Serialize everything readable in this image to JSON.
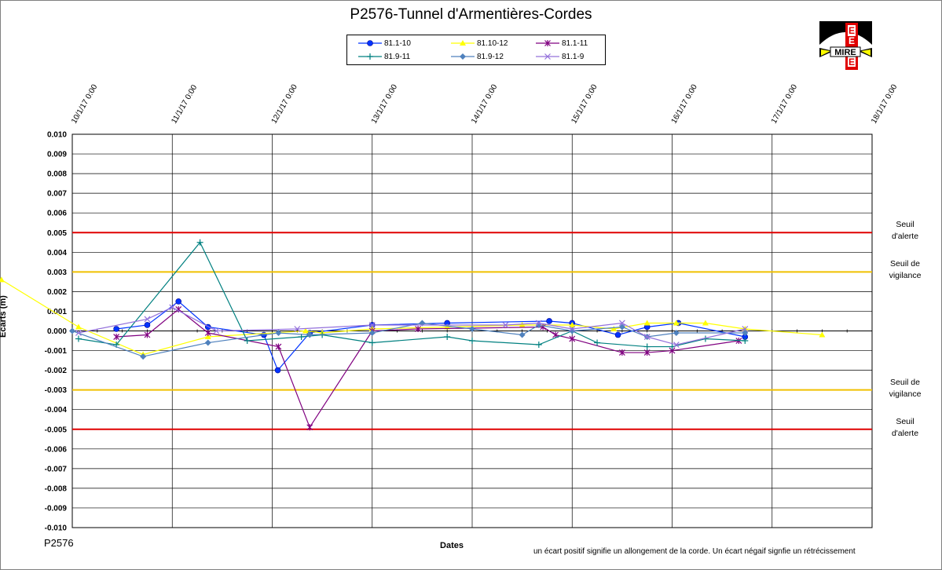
{
  "chart_data": {
    "type": "line",
    "title": "P2576-Tunnel  d'Armentières-Cordes",
    "xlabel": "Dates",
    "ylabel": "Ecarts (m)",
    "x_tick_labels": [
      "10/1/17 0:00",
      "11/1/17 0:00",
      "12/1/17 0:00",
      "13/1/17 0:00",
      "14/1/17 0:00",
      "15/1/17 0:00",
      "16/1/17 0:00",
      "17/1/17 0:00",
      "18/1/17 0:00"
    ],
    "xlim": [
      "10/1/17 0:00",
      "18/1/17 0:00"
    ],
    "ylim": [
      -0.01,
      0.01
    ],
    "y_ticks": [
      "0.010",
      "0.009",
      "0.008",
      "0.007",
      "0.006",
      "0.005",
      "0.004",
      "0.003",
      "0.002",
      "0.001",
      "0.000",
      "-0.001",
      "-0.002",
      "-0.003",
      "-0.004",
      "-0.005",
      "-0.006",
      "-0.007",
      "-0.008",
      "-0.009",
      "-0.010"
    ],
    "grid": true,
    "legend_position": "top-center",
    "series": [
      {
        "name": "81.1-10",
        "color": "#0033ff",
        "marker": "circle",
        "x": [
          "10/1/17 10:35",
          "10/1/17 18:00",
          "11/1/17 1:30",
          "11/1/17 8:35",
          "11/1/17 22:00",
          "12/1/17 1:20",
          "12/1/17 9:00",
          "13/1/17 0:00",
          "13/1/17 18:00",
          "14/1/17 18:30",
          "15/1/17 0:00",
          "15/1/17 11:00",
          "15/1/17 18:00",
          "16/1/17 1:30",
          "16/1/17 17:30"
        ],
        "y": [
          0.0001,
          0.0003,
          0.0015,
          0.0002,
          -0.0002,
          -0.002,
          -0.0001,
          0.0003,
          0.0004,
          0.0005,
          0.0004,
          -0.0002,
          0.0002,
          0.0004,
          -0.0003
        ]
      },
      {
        "name": "81.10-12",
        "color": "#ffff00",
        "marker": "triangle",
        "x": [
          "9/1/17 7:00",
          "10/1/17 1:30",
          "10/1/17 17:00",
          "11/1/17 8:35",
          "12/1/17 8:00",
          "12/1/17 12:00",
          "13/1/17 0:00",
          "13/1/17 18:00",
          "14/1/17 12:00",
          "14/1/17 16:00",
          "15/1/17 0:00",
          "15/1/17 10:00",
          "15/1/17 18:00",
          "16/1/17 1:00",
          "16/1/17 8:00",
          "16/1/17 17:30",
          "17/1/17 12:00"
        ],
        "y": [
          0.0026,
          0.0002,
          -0.0012,
          -0.0003,
          0.0,
          -0.0001,
          0.0001,
          0.0002,
          0.0003,
          0.0003,
          0.0003,
          0.0001,
          0.0004,
          0.0004,
          0.0004,
          0.0001,
          -0.0002
        ]
      },
      {
        "name": "81.1-11",
        "color": "#800080",
        "marker": "star",
        "x": [
          "10/1/17 10:35",
          "10/1/17 18:00",
          "11/1/17 1:30",
          "11/1/17 8:35",
          "12/1/17 1:30",
          "12/1/17 9:00",
          "13/1/17 0:00",
          "13/1/17 11:00",
          "14/1/17 17:00",
          "14/1/17 20:00",
          "15/1/17 0:00",
          "15/1/17 12:00",
          "15/1/17 18:00",
          "16/1/17 0:00",
          "16/1/17 16:00"
        ],
        "y": [
          -0.0003,
          -0.0002,
          0.0011,
          -0.0001,
          -0.0008,
          -0.0049,
          0.0,
          0.0001,
          0.0002,
          -0.0002,
          -0.0004,
          -0.0011,
          -0.0011,
          -0.001,
          -0.0005
        ]
      },
      {
        "name": "81.9-11",
        "color": "#008080",
        "marker": "plus",
        "x": [
          "10/1/17 1:30",
          "10/1/17 10:35",
          "11/1/17 6:40",
          "11/1/17 18:00",
          "12/1/17 7:00",
          "12/1/17 12:00",
          "13/1/17 0:00",
          "13/1/17 18:00",
          "14/1/17 0:00",
          "14/1/17 16:00",
          "15/1/17 0:00",
          "15/1/17 6:00",
          "15/1/17 18:00",
          "16/1/17 0:00",
          "16/1/17 8:00",
          "16/1/17 17:30"
        ],
        "y": [
          -0.0004,
          -0.0007,
          0.0045,
          -0.0005,
          -0.0003,
          -0.0002,
          -0.0006,
          -0.0003,
          -0.0005,
          -0.0007,
          0.0,
          -0.0006,
          -0.0008,
          -0.0008,
          -0.0004,
          -0.0005
        ]
      },
      {
        "name": "81.9-12",
        "color": "#4f81bd",
        "marker": "diamond",
        "x": [
          "10/1/17 0:00",
          "10/1/17 17:00",
          "11/1/17 8:35",
          "12/1/17 1:30",
          "12/1/17 9:00",
          "13/1/17 0:00",
          "13/1/17 12:00",
          "14/1/17 0:00",
          "14/1/17 12:00",
          "14/1/17 16:00",
          "15/1/17 0:00",
          "15/1/17 12:00",
          "15/1/17 18:00",
          "16/1/17 1:00",
          "16/1/17 17:30"
        ],
        "y": [
          0.0,
          -0.0013,
          -0.0006,
          -0.0001,
          -0.0002,
          -0.0001,
          0.0004,
          0.0001,
          -0.0002,
          0.0003,
          0.0,
          0.0002,
          -0.0003,
          -0.0001,
          -0.0001
        ]
      },
      {
        "name": "81.1-9",
        "color": "#9370db",
        "marker": "x",
        "x": [
          "10/1/17 1:30",
          "10/1/17 18:00",
          "11/1/17 0:00",
          "11/1/17 10:35",
          "12/1/17 6:00",
          "13/1/17 0:00",
          "14/1/17 8:00",
          "14/1/17 16:00",
          "15/1/17 0:00",
          "15/1/17 12:00",
          "15/1/17 18:00",
          "16/1/17 1:00",
          "16/1/17 17:30"
        ],
        "y": [
          -0.0001,
          0.0006,
          0.0012,
          0.0,
          0.0001,
          0.0003,
          0.0003,
          0.0004,
          0.0001,
          0.0004,
          -0.0003,
          -0.0007,
          0.0001
        ]
      }
    ],
    "thresholds": [
      {
        "value": 0.005,
        "color": "#e00000",
        "label": [
          "Seuil",
          "d'alerte"
        ]
      },
      {
        "value": 0.003,
        "color": "#f0c000",
        "label": [
          "Seuil de",
          "vigilance"
        ]
      },
      {
        "value": -0.003,
        "color": "#f0c000",
        "label": [
          "Seuil de",
          "vigilance"
        ]
      },
      {
        "value": -0.005,
        "color": "#e00000",
        "label": [
          "Seuil",
          "d'alerte"
        ]
      }
    ]
  },
  "footer": {
    "id_label": "P2576",
    "note": "un écart positif  signifie  un allongement  de la corde.  Un écart négaif signfie  un rétrécissement"
  },
  "logo": {
    "text": "MIRE",
    "letters": [
      "E",
      "E",
      "E"
    ],
    "colors": {
      "dark": "#000000",
      "red": "#e00000",
      "yellow": "#ffff00",
      "white": "#ffffff"
    }
  }
}
